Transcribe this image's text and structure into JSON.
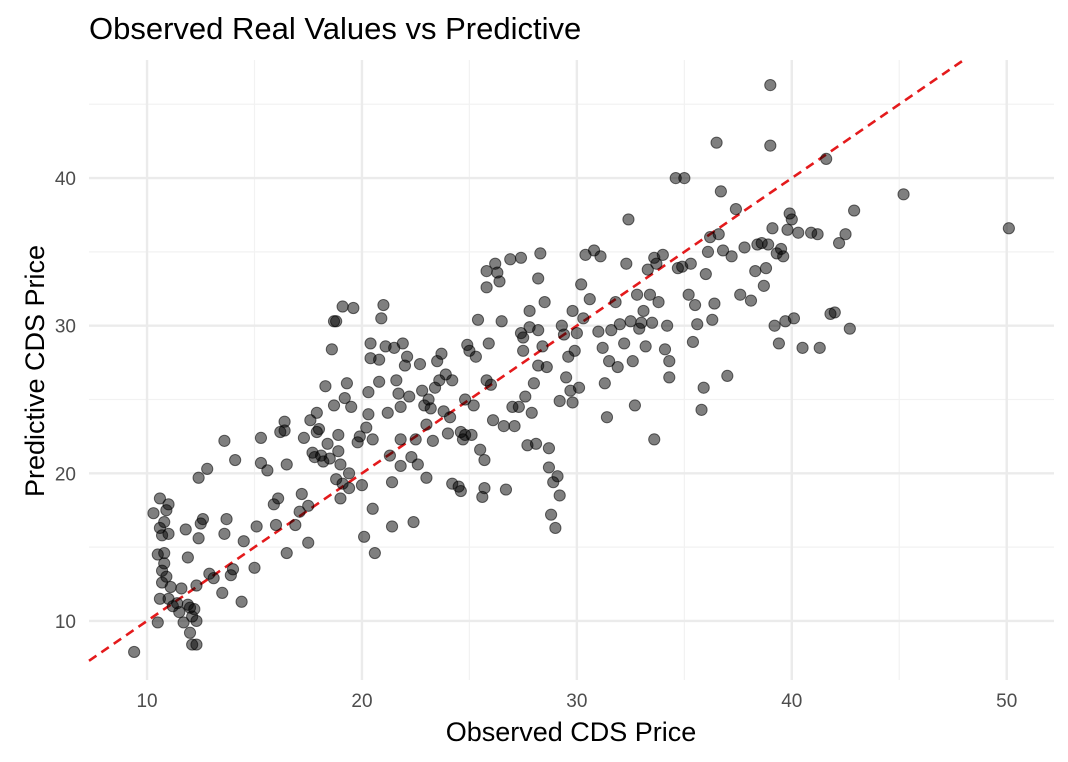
{
  "chart_data": {
    "type": "scatter",
    "title": "Observed Real Values vs Predictive",
    "xlabel": "Observed CDS Price",
    "ylabel": "Predictive CDS Price",
    "xlim": [
      7.3,
      52.2
    ],
    "ylim": [
      6.0,
      48.0
    ],
    "x_ticks": [
      10,
      20,
      30,
      40,
      50
    ],
    "y_ticks": [
      10,
      20,
      30,
      40
    ],
    "grid": true,
    "legend": "none",
    "point_color": "#000000",
    "reference_line": {
      "type": "identity",
      "color": "#e41a1c",
      "style": "dashed"
    },
    "points": [
      [
        9.4,
        7.9
      ],
      [
        10.3,
        17.3
      ],
      [
        10.5,
        14.5
      ],
      [
        10.6,
        18.3
      ],
      [
        10.6,
        16.3
      ],
      [
        10.7,
        15.8
      ],
      [
        10.8,
        16.7
      ],
      [
        10.8,
        13.9
      ],
      [
        10.7,
        13.4
      ],
      [
        10.7,
        12.6
      ],
      [
        10.6,
        11.5
      ],
      [
        10.5,
        9.9
      ],
      [
        10.8,
        14.6
      ],
      [
        10.9,
        17.5
      ],
      [
        11.0,
        17.9
      ],
      [
        11.0,
        15.9
      ],
      [
        10.9,
        13.0
      ],
      [
        11.1,
        12.3
      ],
      [
        11.0,
        11.5
      ],
      [
        11.2,
        11.0
      ],
      [
        11.4,
        11.2
      ],
      [
        11.5,
        10.6
      ],
      [
        11.6,
        12.2
      ],
      [
        11.7,
        9.9
      ],
      [
        11.9,
        11.1
      ],
      [
        11.9,
        14.3
      ],
      [
        11.8,
        16.2
      ],
      [
        12.0,
        10.9
      ],
      [
        12.1,
        10.3
      ],
      [
        12.2,
        10.8
      ],
      [
        12.0,
        9.2
      ],
      [
        12.1,
        8.4
      ],
      [
        12.3,
        8.4
      ],
      [
        12.3,
        10.0
      ],
      [
        12.3,
        12.4
      ],
      [
        12.4,
        15.6
      ],
      [
        12.5,
        16.6
      ],
      [
        12.4,
        19.7
      ],
      [
        12.6,
        16.9
      ],
      [
        12.8,
        20.3
      ],
      [
        12.9,
        13.2
      ],
      [
        13.1,
        12.9
      ],
      [
        13.5,
        11.9
      ],
      [
        13.6,
        15.9
      ],
      [
        13.7,
        16.9
      ],
      [
        13.6,
        22.2
      ],
      [
        13.9,
        13.1
      ],
      [
        14.0,
        13.5
      ],
      [
        14.1,
        20.9
      ],
      [
        14.4,
        11.3
      ],
      [
        14.5,
        15.4
      ],
      [
        15.0,
        13.6
      ],
      [
        15.1,
        16.4
      ],
      [
        15.3,
        20.7
      ],
      [
        15.3,
        22.4
      ],
      [
        15.6,
        20.2
      ],
      [
        15.9,
        17.9
      ],
      [
        16.0,
        16.5
      ],
      [
        16.1,
        18.3
      ],
      [
        16.2,
        22.8
      ],
      [
        16.4,
        22.9
      ],
      [
        16.4,
        23.5
      ],
      [
        16.5,
        20.6
      ],
      [
        16.5,
        14.6
      ],
      [
        16.9,
        16.5
      ],
      [
        17.1,
        17.4
      ],
      [
        17.2,
        18.6
      ],
      [
        17.3,
        22.4
      ],
      [
        17.5,
        15.3
      ],
      [
        17.5,
        17.8
      ],
      [
        17.6,
        23.6
      ],
      [
        17.7,
        21.4
      ],
      [
        17.8,
        21.1
      ],
      [
        17.9,
        22.8
      ],
      [
        17.9,
        24.1
      ],
      [
        18.0,
        23.0
      ],
      [
        18.1,
        21.2
      ],
      [
        18.2,
        20.8
      ],
      [
        18.3,
        25.9
      ],
      [
        18.4,
        22.0
      ],
      [
        18.5,
        21.0
      ],
      [
        18.6,
        28.4
      ],
      [
        18.7,
        30.3
      ],
      [
        18.8,
        30.3
      ],
      [
        18.7,
        24.6
      ],
      [
        18.8,
        19.6
      ],
      [
        18.9,
        21.5
      ],
      [
        18.9,
        22.6
      ],
      [
        19.0,
        20.6
      ],
      [
        19.0,
        18.3
      ],
      [
        19.1,
        19.3
      ],
      [
        19.2,
        25.1
      ],
      [
        19.3,
        26.1
      ],
      [
        19.4,
        19.0
      ],
      [
        19.5,
        24.5
      ],
      [
        19.1,
        31.3
      ],
      [
        19.6,
        31.2
      ],
      [
        19.4,
        20.0
      ],
      [
        19.8,
        22.1
      ],
      [
        19.9,
        22.5
      ],
      [
        20.0,
        19.2
      ],
      [
        20.1,
        15.7
      ],
      [
        20.2,
        23.1
      ],
      [
        20.3,
        24.0
      ],
      [
        20.3,
        25.5
      ],
      [
        20.4,
        27.8
      ],
      [
        20.4,
        28.8
      ],
      [
        20.5,
        22.3
      ],
      [
        20.5,
        17.6
      ],
      [
        20.6,
        14.6
      ],
      [
        20.8,
        26.2
      ],
      [
        20.8,
        27.7
      ],
      [
        20.9,
        30.5
      ],
      [
        21.0,
        31.4
      ],
      [
        21.1,
        28.6
      ],
      [
        21.2,
        24.1
      ],
      [
        21.3,
        21.2
      ],
      [
        21.4,
        19.4
      ],
      [
        21.4,
        16.4
      ],
      [
        21.5,
        28.5
      ],
      [
        21.6,
        26.3
      ],
      [
        21.7,
        25.4
      ],
      [
        21.8,
        24.5
      ],
      [
        21.8,
        22.3
      ],
      [
        21.8,
        20.5
      ],
      [
        21.9,
        28.8
      ],
      [
        22.0,
        27.3
      ],
      [
        22.1,
        27.9
      ],
      [
        22.2,
        25.2
      ],
      [
        22.3,
        21.1
      ],
      [
        22.4,
        16.7
      ],
      [
        22.5,
        22.3
      ],
      [
        22.6,
        20.6
      ],
      [
        22.7,
        27.4
      ],
      [
        22.8,
        25.6
      ],
      [
        22.9,
        24.6
      ],
      [
        23.0,
        23.3
      ],
      [
        23.0,
        19.7
      ],
      [
        23.1,
        25.0
      ],
      [
        23.2,
        24.4
      ],
      [
        23.3,
        22.2
      ],
      [
        23.4,
        25.8
      ],
      [
        23.5,
        27.6
      ],
      [
        23.6,
        26.3
      ],
      [
        23.7,
        28.1
      ],
      [
        23.8,
        24.2
      ],
      [
        23.9,
        26.7
      ],
      [
        24.0,
        22.7
      ],
      [
        24.1,
        23.8
      ],
      [
        24.2,
        19.3
      ],
      [
        24.2,
        26.3
      ],
      [
        24.5,
        19.1
      ],
      [
        24.6,
        18.8
      ],
      [
        24.6,
        22.8
      ],
      [
        24.7,
        22.3
      ],
      [
        24.8,
        22.6
      ],
      [
        24.8,
        25.0
      ],
      [
        24.9,
        28.7
      ],
      [
        25.0,
        28.3
      ],
      [
        25.1,
        22.6
      ],
      [
        25.2,
        24.6
      ],
      [
        25.3,
        27.9
      ],
      [
        25.4,
        30.4
      ],
      [
        25.5,
        21.6
      ],
      [
        25.6,
        18.4
      ],
      [
        25.7,
        19.0
      ],
      [
        25.7,
        20.9
      ],
      [
        25.8,
        26.3
      ],
      [
        25.8,
        32.6
      ],
      [
        25.8,
        33.7
      ],
      [
        25.9,
        28.8
      ],
      [
        26.0,
        26.0
      ],
      [
        26.1,
        23.6
      ],
      [
        26.2,
        34.2
      ],
      [
        26.3,
        33.6
      ],
      [
        26.4,
        33.0
      ],
      [
        26.5,
        30.3
      ],
      [
        26.6,
        23.2
      ],
      [
        26.7,
        18.9
      ],
      [
        26.9,
        34.5
      ],
      [
        27.0,
        24.5
      ],
      [
        27.1,
        23.2
      ],
      [
        27.3,
        24.5
      ],
      [
        27.4,
        34.6
      ],
      [
        27.4,
        29.5
      ],
      [
        27.5,
        29.2
      ],
      [
        27.5,
        28.3
      ],
      [
        27.6,
        25.2
      ],
      [
        27.7,
        21.9
      ],
      [
        27.8,
        29.9
      ],
      [
        27.8,
        31.0
      ],
      [
        27.9,
        24.1
      ],
      [
        28.0,
        26.1
      ],
      [
        28.1,
        22.0
      ],
      [
        28.2,
        27.3
      ],
      [
        28.2,
        29.7
      ],
      [
        28.2,
        33.2
      ],
      [
        28.3,
        34.9
      ],
      [
        28.4,
        28.6
      ],
      [
        28.5,
        31.6
      ],
      [
        28.6,
        27.2
      ],
      [
        28.7,
        21.7
      ],
      [
        28.7,
        20.4
      ],
      [
        28.8,
        17.2
      ],
      [
        28.9,
        19.4
      ],
      [
        29.0,
        16.3
      ],
      [
        29.1,
        19.8
      ],
      [
        29.2,
        18.5
      ],
      [
        29.2,
        24.9
      ],
      [
        29.3,
        30.0
      ],
      [
        29.4,
        29.4
      ],
      [
        29.5,
        26.5
      ],
      [
        29.6,
        27.9
      ],
      [
        29.7,
        25.6
      ],
      [
        29.8,
        24.8
      ],
      [
        29.8,
        31.0
      ],
      [
        29.9,
        28.3
      ],
      [
        30.0,
        29.5
      ],
      [
        30.1,
        25.8
      ],
      [
        30.2,
        32.8
      ],
      [
        30.3,
        30.5
      ],
      [
        30.4,
        34.8
      ],
      [
        30.6,
        31.8
      ],
      [
        30.8,
        35.1
      ],
      [
        31.0,
        29.6
      ],
      [
        31.1,
        34.7
      ],
      [
        31.2,
        28.5
      ],
      [
        31.3,
        26.1
      ],
      [
        31.4,
        23.8
      ],
      [
        31.5,
        27.6
      ],
      [
        31.6,
        29.7
      ],
      [
        31.8,
        31.6
      ],
      [
        31.9,
        27.2
      ],
      [
        32.0,
        30.1
      ],
      [
        32.2,
        28.8
      ],
      [
        32.3,
        34.2
      ],
      [
        32.4,
        37.2
      ],
      [
        32.5,
        30.3
      ],
      [
        32.6,
        27.6
      ],
      [
        32.7,
        24.6
      ],
      [
        32.8,
        32.1
      ],
      [
        32.9,
        29.8
      ],
      [
        33.0,
        30.2
      ],
      [
        33.1,
        31.0
      ],
      [
        33.2,
        28.6
      ],
      [
        33.3,
        33.8
      ],
      [
        33.4,
        32.1
      ],
      [
        33.5,
        30.2
      ],
      [
        33.6,
        22.3
      ],
      [
        33.6,
        34.6
      ],
      [
        33.7,
        34.2
      ],
      [
        33.8,
        31.6
      ],
      [
        34.0,
        34.8
      ],
      [
        34.1,
        28.4
      ],
      [
        34.2,
        30.0
      ],
      [
        34.3,
        26.5
      ],
      [
        34.3,
        27.6
      ],
      [
        34.6,
        40.0
      ],
      [
        34.7,
        33.9
      ],
      [
        34.9,
        34.0
      ],
      [
        35.0,
        40.0
      ],
      [
        35.2,
        32.1
      ],
      [
        35.3,
        34.2
      ],
      [
        35.4,
        28.9
      ],
      [
        35.5,
        31.4
      ],
      [
        35.6,
        30.1
      ],
      [
        35.8,
        24.3
      ],
      [
        35.9,
        25.8
      ],
      [
        36.0,
        33.5
      ],
      [
        36.1,
        35.0
      ],
      [
        36.2,
        36.0
      ],
      [
        36.3,
        30.4
      ],
      [
        36.4,
        31.5
      ],
      [
        36.5,
        42.4
      ],
      [
        36.6,
        36.2
      ],
      [
        36.7,
        39.1
      ],
      [
        36.8,
        35.1
      ],
      [
        37.0,
        26.6
      ],
      [
        37.2,
        34.7
      ],
      [
        37.4,
        37.9
      ],
      [
        37.6,
        32.1
      ],
      [
        37.8,
        35.3
      ],
      [
        38.1,
        31.7
      ],
      [
        38.3,
        33.7
      ],
      [
        38.4,
        35.5
      ],
      [
        38.6,
        35.6
      ],
      [
        38.7,
        32.7
      ],
      [
        38.8,
        33.9
      ],
      [
        38.9,
        35.5
      ],
      [
        39.0,
        46.3
      ],
      [
        39.0,
        42.2
      ],
      [
        39.1,
        36.6
      ],
      [
        39.2,
        30.0
      ],
      [
        39.3,
        34.9
      ],
      [
        39.4,
        28.8
      ],
      [
        39.5,
        35.2
      ],
      [
        39.6,
        34.7
      ],
      [
        39.7,
        30.3
      ],
      [
        39.8,
        36.5
      ],
      [
        39.9,
        37.6
      ],
      [
        40.0,
        37.2
      ],
      [
        40.1,
        30.5
      ],
      [
        40.3,
        36.3
      ],
      [
        40.5,
        28.5
      ],
      [
        40.9,
        36.3
      ],
      [
        41.2,
        36.2
      ],
      [
        41.3,
        28.5
      ],
      [
        41.6,
        41.3
      ],
      [
        41.8,
        30.8
      ],
      [
        42.0,
        30.9
      ],
      [
        42.2,
        35.6
      ],
      [
        42.5,
        36.2
      ],
      [
        42.7,
        29.8
      ],
      [
        42.9,
        37.8
      ],
      [
        45.2,
        38.9
      ],
      [
        50.1,
        36.6
      ]
    ]
  }
}
